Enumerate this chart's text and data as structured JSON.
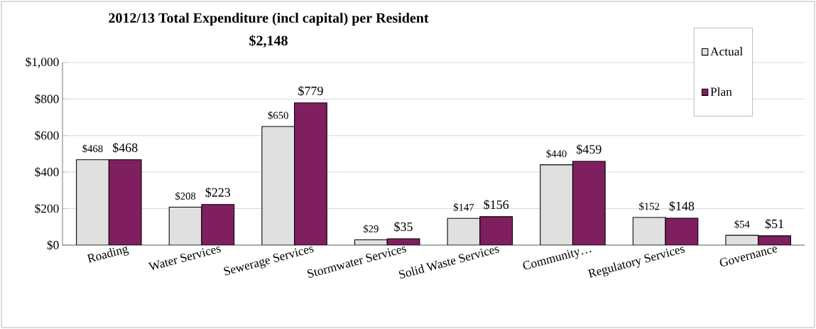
{
  "chart_data": {
    "type": "bar",
    "title": "2012/13 Total Expenditure (incl capital) per Resident",
    "subtitle": "$2,148",
    "categories": [
      "Roading",
      "Water Services",
      "Sewerage Services",
      "Stormwater Services",
      "Solid Waste Services",
      "Community…",
      "Regulatory Services",
      "Governance"
    ],
    "series": [
      {
        "name": "Actual",
        "color": "#e0e0e0",
        "values": [
          468,
          208,
          650,
          29,
          147,
          440,
          152,
          54
        ],
        "value_labels": [
          "$468",
          "$208",
          "$650",
          "$29",
          "$147",
          "$440",
          "$152",
          "$54"
        ]
      },
      {
        "name": "Plan",
        "color": "#7f1f5f",
        "values": [
          468,
          223,
          779,
          35,
          156,
          459,
          148,
          51
        ],
        "value_labels": [
          "$468",
          "$223",
          "$779",
          "$35",
          "$156",
          "$459",
          "$148",
          "$51"
        ]
      }
    ],
    "ylim": [
      0,
      1000
    ],
    "yticks": [
      {
        "value": 0,
        "label": "$0"
      },
      {
        "value": 200,
        "label": "$200"
      },
      {
        "value": 400,
        "label": "$400"
      },
      {
        "value": 600,
        "label": "$600"
      },
      {
        "value": 800,
        "label": "$800"
      },
      {
        "value": 1000,
        "label": "$1,000"
      }
    ],
    "grid": "y",
    "legend": "top right"
  }
}
